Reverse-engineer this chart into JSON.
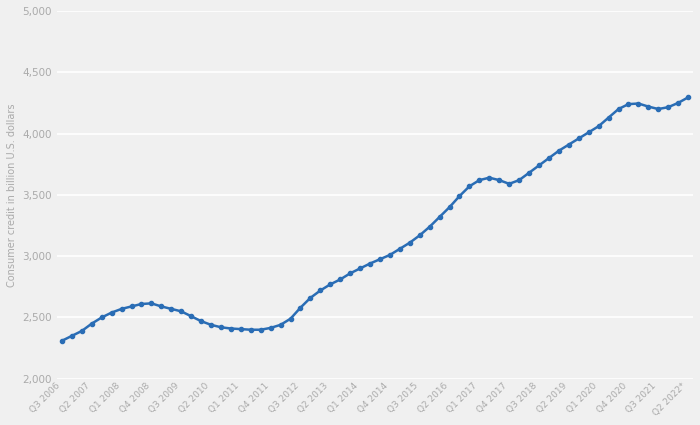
{
  "x_labels": [
    "Q3 2006",
    "Q2 2007",
    "Q1 2008",
    "Q4 2008",
    "Q3 2009",
    "Q2 2010",
    "Q1 2011",
    "Q4 2011",
    "Q3 2012",
    "Q2 2013",
    "Q1 2014",
    "Q4 2014",
    "Q3 2015",
    "Q2 2016",
    "Q1 2017",
    "Q4 2017",
    "Q3 2018",
    "Q2 2019",
    "Q1 2020",
    "Q4 2020",
    "Q3 2021",
    "Q2 2022*"
  ],
  "line_color": "#2a6db5",
  "marker_color": "#2a6db5",
  "background_color": "#f0f0f0",
  "grid_color": "#e8e8e8",
  "ylabel": "Consumer credit in billion U.S. dollars",
  "ylim": [
    2000,
    5000
  ],
  "yticks": [
    2000,
    2500,
    3000,
    3500,
    4000,
    4500,
    5000
  ],
  "tick_label_color": "#aaaaaa",
  "axis_label_color": "#aaaaaa",
  "anchors_x": [
    0,
    1,
    2,
    3,
    4,
    5,
    6,
    7,
    8,
    9,
    10,
    11,
    12,
    13,
    14,
    15,
    16,
    17,
    18,
    19,
    20,
    21,
    22,
    23,
    24,
    25,
    26,
    27,
    28,
    29,
    30,
    31,
    32,
    33,
    34,
    35,
    36,
    37,
    38,
    39,
    40,
    41,
    42,
    43,
    44,
    45,
    46,
    47,
    48,
    49,
    50,
    51,
    52,
    53,
    54,
    55,
    56,
    57,
    58,
    59,
    60,
    61,
    62,
    63
  ],
  "anchors_y": [
    2310,
    2350,
    2390,
    2450,
    2500,
    2540,
    2570,
    2590,
    2610,
    2615,
    2590,
    2570,
    2550,
    2510,
    2470,
    2440,
    2420,
    2410,
    2405,
    2400,
    2400,
    2415,
    2440,
    2490,
    2580,
    2660,
    2720,
    2770,
    2810,
    2860,
    2900,
    2940,
    2975,
    3010,
    3060,
    3110,
    3170,
    3240,
    3320,
    3400,
    3490,
    3570,
    3620,
    3640,
    3620,
    3590,
    3620,
    3680,
    3740,
    3800,
    3860,
    3910,
    3960,
    4010,
    4060,
    4130,
    4200,
    4240,
    4245,
    4220,
    4200,
    4215,
    4250,
    4295
  ]
}
